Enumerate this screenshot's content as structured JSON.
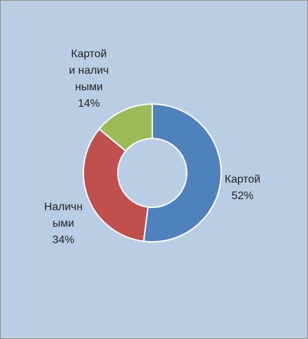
{
  "chart_data": {
    "type": "donut",
    "categories": [
      "Картой",
      "Наличными",
      "Картой и наличными"
    ],
    "values": [
      52,
      34,
      14
    ],
    "value_labels": [
      "52%",
      "34%",
      "14%"
    ],
    "colors": [
      "#4f81bd",
      "#c0504d",
      "#9bbb59"
    ]
  }
}
